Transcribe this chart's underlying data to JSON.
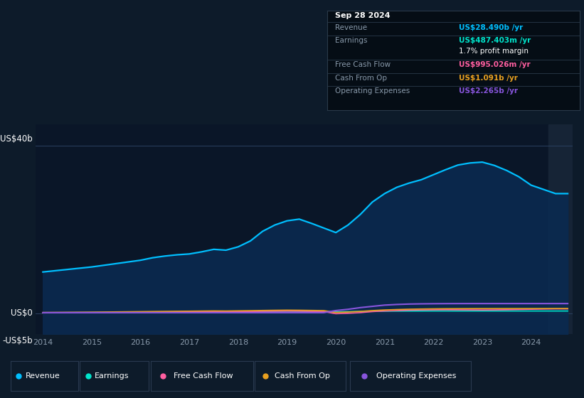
{
  "bg_color": "#0d1b2a",
  "chart_area_color": "#0a1628",
  "grid_color": "#1e3a5f",
  "text_color": "#ffffff",
  "label_color": "#8899aa",
  "ylabel_top": "US$40b",
  "ylabel_mid": "US$0",
  "ylabel_bot": "-US$5b",
  "ylim_low": -5000000000,
  "ylim_high": 45000000000,
  "years": [
    2014,
    2014.25,
    2014.5,
    2014.75,
    2015,
    2015.25,
    2015.5,
    2015.75,
    2016,
    2016.25,
    2016.5,
    2016.75,
    2017,
    2017.25,
    2017.5,
    2017.75,
    2018,
    2018.25,
    2018.5,
    2018.75,
    2019,
    2019.25,
    2019.5,
    2019.75,
    2020,
    2020.25,
    2020.5,
    2020.75,
    2021,
    2021.25,
    2021.5,
    2021.75,
    2022,
    2022.25,
    2022.5,
    2022.75,
    2023,
    2023.25,
    2023.5,
    2023.75,
    2024,
    2024.25,
    2024.5,
    2024.75
  ],
  "revenue": [
    9800000000,
    10100000000,
    10400000000,
    10700000000,
    11000000000,
    11400000000,
    11800000000,
    12200000000,
    12600000000,
    13200000000,
    13600000000,
    13900000000,
    14100000000,
    14600000000,
    15200000000,
    15000000000,
    15800000000,
    17200000000,
    19500000000,
    21000000000,
    22000000000,
    22400000000,
    21400000000,
    20300000000,
    19200000000,
    21000000000,
    23500000000,
    26500000000,
    28500000000,
    30000000000,
    31000000000,
    31800000000,
    33000000000,
    34200000000,
    35300000000,
    35800000000,
    36000000000,
    35200000000,
    34000000000,
    32500000000,
    30500000000,
    29500000000,
    28490000000,
    28490000000
  ],
  "earnings": [
    100000000,
    110000000,
    120000000,
    130000000,
    140000000,
    150000000,
    170000000,
    190000000,
    210000000,
    230000000,
    250000000,
    270000000,
    290000000,
    310000000,
    330000000,
    320000000,
    350000000,
    380000000,
    410000000,
    440000000,
    460000000,
    440000000,
    400000000,
    360000000,
    300000000,
    350000000,
    400000000,
    430000000,
    450000000,
    460000000,
    470000000,
    480000000,
    490000000,
    490000000,
    485000000,
    488000000,
    488000000,
    487000000,
    487400000,
    487403000,
    487403000,
    487403000,
    487403000,
    487403000
  ],
  "free_cash_flow": [
    50000000,
    60000000,
    70000000,
    80000000,
    100000000,
    120000000,
    140000000,
    160000000,
    200000000,
    220000000,
    250000000,
    270000000,
    300000000,
    320000000,
    340000000,
    320000000,
    350000000,
    380000000,
    420000000,
    450000000,
    480000000,
    460000000,
    400000000,
    350000000,
    -150000000,
    -50000000,
    100000000,
    350000000,
    500000000,
    600000000,
    700000000,
    750000000,
    780000000,
    800000000,
    780000000,
    760000000,
    740000000,
    760000000,
    800000000,
    850000000,
    900000000,
    950000000,
    995026000,
    995026000
  ],
  "cash_from_op": [
    150000000,
    170000000,
    190000000,
    210000000,
    230000000,
    260000000,
    290000000,
    320000000,
    350000000,
    380000000,
    410000000,
    440000000,
    460000000,
    490000000,
    520000000,
    500000000,
    540000000,
    580000000,
    630000000,
    670000000,
    700000000,
    680000000,
    640000000,
    600000000,
    150000000,
    250000000,
    400000000,
    600000000,
    750000000,
    850000000,
    930000000,
    980000000,
    1020000000,
    1050000000,
    1060000000,
    1070000000,
    1080000000,
    1085000000,
    1090000000,
    1091000000,
    1091000000,
    1091000000,
    1091000000,
    1091000000
  ],
  "operating_expenses": [
    100000000,
    100000000,
    100000000,
    100000000,
    100000000,
    100000000,
    100000000,
    100000000,
    100000000,
    100000000,
    100000000,
    100000000,
    100000000,
    100000000,
    100000000,
    100000000,
    100000000,
    100000000,
    100000000,
    100000000,
    100000000,
    100000000,
    100000000,
    100000000,
    600000000,
    900000000,
    1300000000,
    1600000000,
    1900000000,
    2050000000,
    2150000000,
    2200000000,
    2230000000,
    2250000000,
    2260000000,
    2265000000,
    2265000000,
    2265000000,
    2265000000,
    2265000000,
    2265000000,
    2265000000,
    2265000000,
    2265000000
  ],
  "revenue_color": "#00bfff",
  "earnings_color": "#00e5cc",
  "free_cash_flow_color": "#ff5fa0",
  "cash_from_op_color": "#e8a020",
  "operating_expenses_color": "#8855dd",
  "highlight_color": "#162436",
  "tooltip_bg": "#050d15",
  "tooltip_border": "#2a3a4a",
  "tooltip_date": "Sep 28 2024",
  "tooltip_revenue_label": "Revenue",
  "tooltip_revenue_val": "US$28.490b",
  "tooltip_revenue_color": "#00bfff",
  "tooltip_earnings_label": "Earnings",
  "tooltip_earnings_val": "US$487.403m",
  "tooltip_earnings_color": "#00e5cc",
  "tooltip_margin": "1.7% profit margin",
  "tooltip_fcf_label": "Free Cash Flow",
  "tooltip_fcf_val": "US$995.026m",
  "tooltip_fcf_color": "#ff5fa0",
  "tooltip_cfop_label": "Cash From Op",
  "tooltip_cfop_val": "US$1.091b",
  "tooltip_cfop_color": "#e8a020",
  "tooltip_opex_label": "Operating Expenses",
  "tooltip_opex_val": "US$2.265b",
  "tooltip_opex_color": "#8855dd",
  "legend_items": [
    "Revenue",
    "Earnings",
    "Free Cash Flow",
    "Cash From Op",
    "Operating Expenses"
  ],
  "legend_colors": [
    "#00bfff",
    "#00e5cc",
    "#ff5fa0",
    "#e8a020",
    "#8855dd"
  ],
  "xtick_labels": [
    "2014",
    "2015",
    "2016",
    "2017",
    "2018",
    "2019",
    "2020",
    "2021",
    "2022",
    "2023",
    "2024"
  ],
  "xtick_values": [
    2014,
    2015,
    2016,
    2017,
    2018,
    2019,
    2020,
    2021,
    2022,
    2023,
    2024
  ]
}
